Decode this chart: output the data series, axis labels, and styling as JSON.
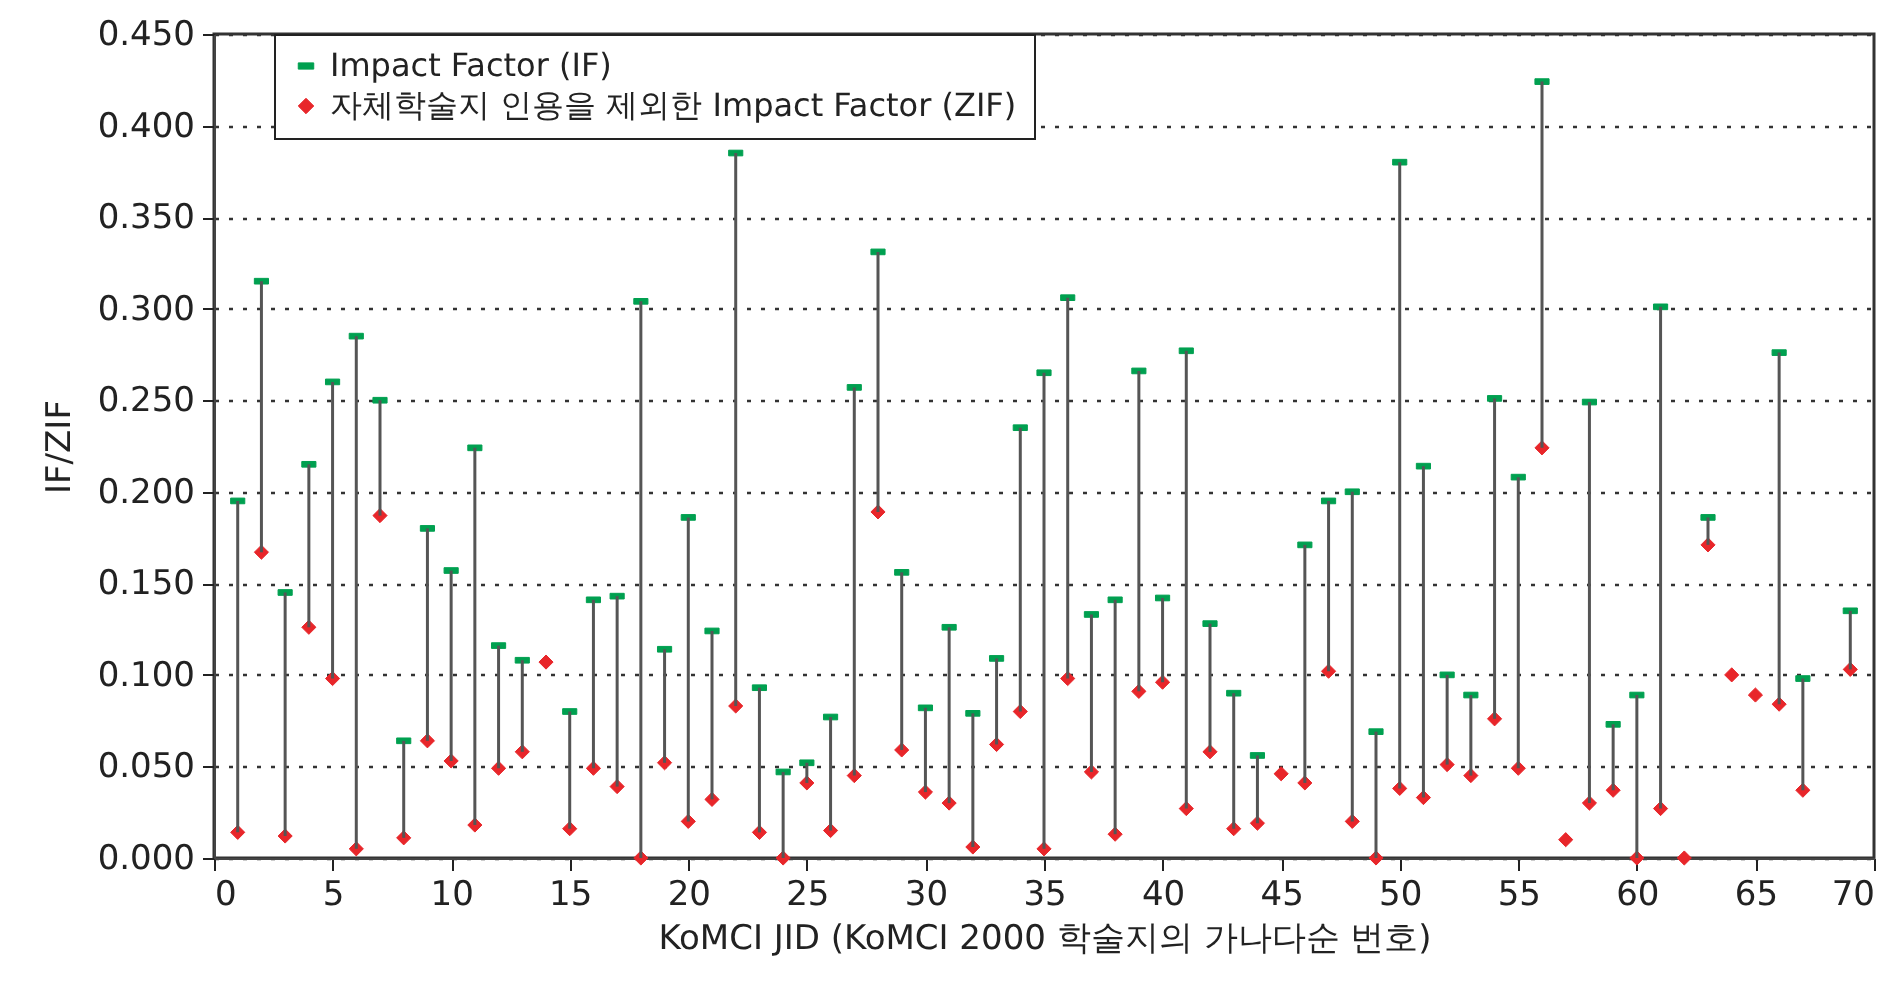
{
  "chart_data": {
    "type": "scatter",
    "xlabel": "KoMCI JID (KoMCI 2000 학술지의 가나다순 번호)",
    "ylabel": "IF/ZIF",
    "x": [
      1,
      2,
      3,
      4,
      5,
      6,
      7,
      8,
      9,
      10,
      11,
      12,
      13,
      14,
      15,
      16,
      17,
      18,
      19,
      20,
      21,
      22,
      23,
      24,
      25,
      26,
      27,
      28,
      29,
      30,
      31,
      32,
      33,
      34,
      35,
      36,
      37,
      38,
      39,
      40,
      41,
      42,
      43,
      44,
      45,
      46,
      47,
      48,
      49,
      50,
      51,
      52,
      53,
      54,
      55,
      56,
      57,
      58,
      59,
      60,
      61,
      62,
      63,
      64,
      65,
      66,
      67,
      69
    ],
    "series": [
      {
        "name": "Impact Factor (IF)",
        "color": "#00a050",
        "values": [
          0.195,
          0.315,
          0.145,
          0.215,
          0.26,
          0.285,
          0.25,
          0.064,
          0.18,
          0.157,
          0.224,
          0.116,
          0.108,
          null,
          0.08,
          0.141,
          0.143,
          0.304,
          0.114,
          0.186,
          0.124,
          0.385,
          0.093,
          0.047,
          0.052,
          0.077,
          0.257,
          0.331,
          0.156,
          0.082,
          0.126,
          0.079,
          0.109,
          0.235,
          0.265,
          0.306,
          0.133,
          0.141,
          0.266,
          0.142,
          0.277,
          0.128,
          0.09,
          0.056,
          null,
          0.171,
          0.195,
          0.2,
          0.069,
          0.38,
          0.214,
          0.1,
          0.089,
          0.251,
          0.208,
          0.424,
          null,
          0.249,
          0.073,
          0.089,
          0.301,
          null,
          0.186,
          null,
          null,
          0.276,
          0.098,
          0.135
        ],
        "errors": [
          [
            0.014,
            0.195
          ],
          [
            0.167,
            0.315
          ],
          [
            0.012,
            0.145
          ],
          [
            0.126,
            0.215
          ],
          [
            0.098,
            0.26
          ],
          [
            0.005,
            0.285
          ],
          [
            0.187,
            0.25
          ],
          [
            0.011,
            0.064
          ],
          [
            0.064,
            0.18
          ],
          [
            0.053,
            0.157
          ],
          [
            0.018,
            0.224
          ],
          [
            0.049,
            0.116
          ],
          [
            0.058,
            0.108
          ],
          null,
          [
            0.016,
            0.08
          ],
          [
            0.049,
            0.141
          ],
          [
            0.039,
            0.143
          ],
          [
            0.0,
            0.304
          ],
          [
            0.052,
            0.114
          ],
          [
            0.02,
            0.186
          ],
          [
            0.032,
            0.124
          ],
          [
            0.083,
            0.385
          ],
          [
            0.014,
            0.093
          ],
          [
            0.0,
            0.047
          ],
          [
            0.041,
            0.052
          ],
          [
            0.015,
            0.077
          ],
          [
            0.045,
            0.257
          ],
          [
            0.189,
            0.331
          ],
          [
            0.059,
            0.156
          ],
          [
            0.036,
            0.082
          ],
          [
            0.03,
            0.126
          ],
          [
            0.006,
            0.079
          ],
          [
            0.062,
            0.109
          ],
          [
            0.08,
            0.235
          ],
          [
            0.005,
            0.265
          ],
          [
            0.098,
            0.306
          ],
          [
            0.047,
            0.133
          ],
          [
            0.013,
            0.141
          ],
          [
            0.091,
            0.266
          ],
          [
            0.096,
            0.142
          ],
          [
            0.027,
            0.277
          ],
          [
            0.058,
            0.128
          ],
          [
            0.016,
            0.09
          ],
          [
            0.019,
            0.056
          ],
          null,
          [
            0.041,
            0.171
          ],
          [
            0.102,
            0.195
          ],
          [
            0.02,
            0.2
          ],
          [
            0.0,
            0.069
          ],
          [
            0.038,
            0.38
          ],
          [
            0.033,
            0.214
          ],
          [
            0.051,
            0.1
          ],
          [
            0.045,
            0.089
          ],
          [
            0.076,
            0.251
          ],
          [
            0.049,
            0.208
          ],
          [
            0.224,
            0.424
          ],
          null,
          [
            0.03,
            0.249
          ],
          [
            0.037,
            0.073
          ],
          [
            0.0,
            0.089
          ],
          [
            0.027,
            0.301
          ],
          null,
          [
            0.171,
            0.186
          ],
          null,
          null,
          [
            0.084,
            0.276
          ],
          [
            0.037,
            0.098
          ],
          [
            0.103,
            0.135
          ]
        ]
      },
      {
        "name": "자체학술지 인용을 제외한 Impact Factor (ZIF)",
        "color": "#e8262a",
        "marker": "diamond",
        "values": [
          0.014,
          0.167,
          0.012,
          0.126,
          0.098,
          0.005,
          0.187,
          0.011,
          0.064,
          0.053,
          0.018,
          0.049,
          0.058,
          0.107,
          0.016,
          0.049,
          0.039,
          0.0,
          0.052,
          0.02,
          0.032,
          0.083,
          0.014,
          0.0,
          0.041,
          0.015,
          0.045,
          0.189,
          0.059,
          0.036,
          0.03,
          0.006,
          0.062,
          0.08,
          0.005,
          0.098,
          0.047,
          0.013,
          0.091,
          0.096,
          0.027,
          0.058,
          0.016,
          0.019,
          0.046,
          0.041,
          0.102,
          0.02,
          0.0,
          0.038,
          0.033,
          0.051,
          0.045,
          0.076,
          0.049,
          0.224,
          0.01,
          0.03,
          0.037,
          0.0,
          0.027,
          0.0,
          0.171,
          0.1,
          0.089,
          0.084,
          0.037,
          0.103
        ]
      }
    ],
    "xlim": [
      0,
      70
    ],
    "xticks": [
      0,
      5,
      10,
      15,
      20,
      25,
      30,
      35,
      40,
      45,
      50,
      55,
      60,
      65,
      70
    ],
    "ylim": [
      0,
      0.45
    ],
    "yticks": [
      {
        "value": 0,
        "label": "0.000"
      },
      {
        "value": 0.05,
        "label": "0.050"
      },
      {
        "value": 0.1,
        "label": "0.100"
      },
      {
        "value": 0.15,
        "label": "0.150"
      },
      {
        "value": 0.2,
        "label": "0.200"
      },
      {
        "value": 0.25,
        "label": "0.250"
      },
      {
        "value": 0.3,
        "label": "0.300"
      },
      {
        "value": 0.35,
        "label": "0.350"
      },
      {
        "value": 0.4,
        "label": "0.400"
      },
      {
        "value": 0.45,
        "label": "0.450"
      }
    ],
    "grid": "y",
    "legend": "top left"
  }
}
